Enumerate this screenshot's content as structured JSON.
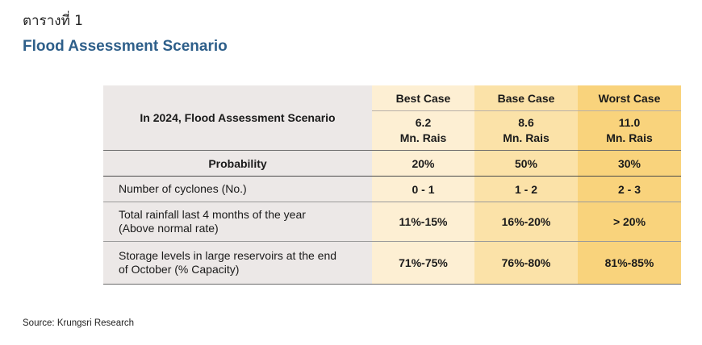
{
  "table_label": "ตารางที่ 1",
  "title": "Flood Assessment Scenario",
  "table": {
    "scenario_heading": "In 2024, Flood Assessment Scenario",
    "columns": [
      {
        "name": "Best Case",
        "area": "6.2",
        "unit": "Mn. Rais"
      },
      {
        "name": "Base Case",
        "area": "8.6",
        "unit": "Mn. Rais"
      },
      {
        "name": "Worst Case",
        "area": "11.0",
        "unit": "Mn. Rais"
      }
    ],
    "rows": [
      {
        "label": "Probability",
        "values": [
          "20%",
          "50%",
          "30%"
        ]
      },
      {
        "label": "Number of cyclones (No.)",
        "values": [
          "0 - 1",
          "1 - 2",
          "2 - 3"
        ]
      },
      {
        "label_line1": "Total rainfall last 4 months of the year",
        "label_line2": "(Above normal rate)",
        "values": [
          "11%-15%",
          "16%-20%",
          "> 20%"
        ]
      },
      {
        "label_line1": "Storage levels in large reservoirs at the end",
        "label_line2": "of October (% Capacity)",
        "values": [
          "71%-75%",
          "76%-80%",
          "81%-85%"
        ]
      }
    ]
  },
  "source": "Source: Krungsri Research"
}
